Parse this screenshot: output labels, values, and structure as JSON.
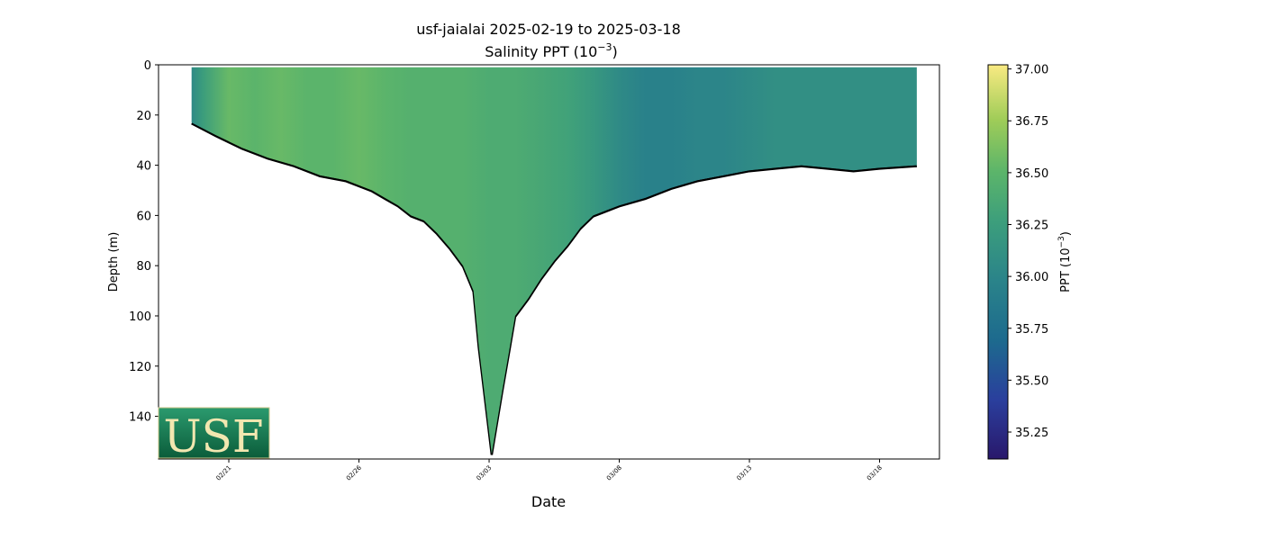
{
  "chart_data": {
    "type": "heatmap",
    "title_line1": "usf-jaialai 2025-02-19 to 2025-03-18",
    "title_line2_base": "Salinity PPT (10",
    "title_line2_sup": "−3",
    "title_line2_end": ")",
    "xlabel": "Date",
    "ylabel": "Depth (m)",
    "x_ticks": [
      "02/21",
      "02/26",
      "03/03",
      "03/08",
      "03/13",
      "03/18"
    ],
    "x_tick_days": [
      2,
      7,
      12,
      17,
      22,
      27
    ],
    "x_range_days": [
      -0.7,
      29.3
    ],
    "y_ticks": [
      0,
      20,
      40,
      60,
      80,
      100,
      120,
      140
    ],
    "y_range": [
      0,
      157
    ],
    "y_inverted": true,
    "grid": false,
    "colormap": "haline",
    "colorbar": {
      "label_base": "PPT (10",
      "label_sup": "−3",
      "label_end": ")",
      "range": [
        35.12,
        37.02
      ],
      "ticks": [
        "37.00",
        "36.75",
        "36.50",
        "36.25",
        "36.00",
        "35.75",
        "35.50",
        "35.25"
      ],
      "tick_values": [
        37.0,
        36.75,
        36.5,
        36.25,
        36.0,
        35.75,
        35.5,
        35.25
      ]
    },
    "data_day_range": [
      0.57,
      28.43
    ],
    "profile_top_depth_m": 1,
    "max_depth_profile": {
      "days": [
        0.57,
        1.5,
        2.5,
        3.5,
        4.5,
        5.5,
        6.5,
        7.5,
        8.0,
        8.5,
        9.0,
        9.5,
        10.0,
        10.5,
        11.0,
        11.4,
        11.6,
        12.1,
        12.5,
        12.8,
        13.0,
        13.5,
        14.0,
        14.5,
        15.0,
        15.5,
        16.0,
        16.5,
        17.0,
        18.0,
        19.0,
        20.0,
        21.0,
        22.0,
        23.0,
        24.0,
        25.0,
        26.0,
        27.0,
        28.43
      ],
      "depth_m": [
        23,
        28,
        33,
        37,
        40,
        44,
        46,
        50,
        53,
        56,
        60,
        62,
        67,
        73,
        80,
        90,
        112,
        155,
        130,
        112,
        100,
        93,
        85,
        78,
        72,
        65,
        60,
        58,
        56,
        53,
        49,
        46,
        44,
        42,
        41,
        40,
        41,
        42,
        41,
        40
      ]
    },
    "salinity_by_time": {
      "days": [
        0.57,
        1.0,
        2.0,
        3.0,
        4.0,
        5.0,
        6.0,
        7.0,
        8.0,
        9.0,
        10.0,
        11.0,
        12.0,
        13.0,
        14.0,
        15.0,
        16.0,
        17.0,
        18.0,
        19.0,
        20.0,
        21.0,
        22.0,
        23.0,
        24.0,
        25.0,
        26.0,
        27.0,
        28.43
      ],
      "ppt": [
        36.05,
        36.25,
        36.55,
        36.5,
        36.55,
        36.5,
        36.5,
        36.55,
        36.5,
        36.45,
        36.45,
        36.45,
        36.4,
        36.4,
        36.35,
        36.3,
        36.2,
        36.05,
        35.95,
        35.95,
        36.0,
        36.0,
        36.05,
        36.1,
        36.1,
        36.1,
        36.1,
        36.1,
        36.1
      ]
    }
  },
  "logo": {
    "text": "USF"
  }
}
